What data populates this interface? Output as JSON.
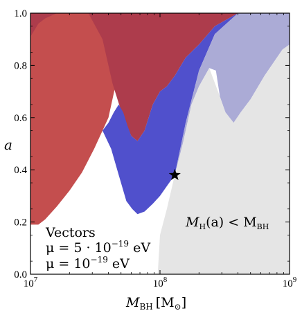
{
  "chart_data": {
    "type": "area",
    "x_scale": "log",
    "xlim": [
      10000000,
      1000000000
    ],
    "ylim": [
      0,
      1
    ],
    "grid": false,
    "legend_position": "bottom-left",
    "x_ticks": [
      {
        "value": 10000000,
        "base": "10",
        "exp": "7"
      },
      {
        "value": 100000000,
        "base": "10",
        "exp": "8"
      },
      {
        "value": 1000000000,
        "base": "10",
        "exp": "9"
      }
    ],
    "y_ticks": [
      {
        "value": 0.0,
        "label": "0.0"
      },
      {
        "value": 0.2,
        "label": "0.2"
      },
      {
        "value": 0.4,
        "label": "0.4"
      },
      {
        "value": 0.6,
        "label": "0.6"
      },
      {
        "value": 0.8,
        "label": "0.8"
      },
      {
        "value": 1.0,
        "label": "1.0"
      }
    ],
    "xlabel": {
      "main": "M",
      "sub": "BH",
      "unit": "[M",
      "unit_sub": "⊙",
      "unit_close": "]"
    },
    "ylabel": "a",
    "legend": {
      "title": "Vectors",
      "entries": [
        {
          "prefix": "μ = 5 · 10",
          "exp": "−19",
          "unit": " eV",
          "color": "#9e3a3a"
        },
        {
          "prefix": "μ = 10",
          "exp": "−19",
          "unit": " eV",
          "color": "#3a3aa8"
        }
      ]
    },
    "annotation": {
      "a": "M",
      "a_sub": "H",
      "mid": "(a) < M",
      "b_sub": "BH"
    },
    "series": [
      {
        "color": "#c44e4e",
        "points": [
          [
            10000000,
            0.19
          ],
          [
            11500000,
            0.19
          ],
          [
            13000000,
            0.21
          ],
          [
            16000000,
            0.26
          ],
          [
            20000000,
            0.32
          ],
          [
            25000000,
            0.39
          ],
          [
            31000000,
            0.48
          ],
          [
            36000000,
            0.55
          ],
          [
            40000000,
            0.6
          ],
          [
            48000000,
            0.78
          ],
          [
            55000000,
            0.98
          ],
          [
            58000000,
            1.0
          ],
          [
            10000000,
            1.0
          ]
        ]
      },
      {
        "color": "#ad3c4c",
        "points": [
          [
            10000000,
            0.91
          ],
          [
            11500000,
            0.96
          ],
          [
            13000000,
            0.98
          ],
          [
            16000000,
            1.0
          ],
          [
            28000000,
            1.0
          ],
          [
            36000000,
            0.9
          ],
          [
            43000000,
            0.73
          ],
          [
            52000000,
            0.6
          ],
          [
            60000000,
            0.53
          ],
          [
            67000000,
            0.51
          ],
          [
            76000000,
            0.55
          ],
          [
            88000000,
            0.65
          ],
          [
            100000000,
            0.7
          ],
          [
            113000000,
            0.72
          ],
          [
            130000000,
            0.76
          ],
          [
            158000000,
            0.83
          ],
          [
            200000000,
            0.88
          ],
          [
            265000000,
            0.95
          ],
          [
            400000000,
            1.0
          ],
          [
            10000000,
            1.0
          ]
        ]
      },
      {
        "color": "#5050cc",
        "points": [
          [
            36000000,
            0.55
          ],
          [
            42000000,
            0.48
          ],
          [
            48000000,
            0.38
          ],
          [
            55000000,
            0.28
          ],
          [
            61000000,
            0.25
          ],
          [
            67000000,
            0.23
          ],
          [
            76000000,
            0.24
          ],
          [
            88000000,
            0.27
          ],
          [
            100000000,
            0.3
          ],
          [
            114000000,
            0.34
          ],
          [
            130000000,
            0.38
          ],
          [
            158000000,
            0.58
          ],
          [
            200000000,
            0.78
          ],
          [
            265000000,
            0.92
          ],
          [
            400000000,
            1.0
          ],
          [
            265000000,
            0.95
          ],
          [
            200000000,
            0.88
          ],
          [
            158000000,
            0.83
          ],
          [
            130000000,
            0.76
          ],
          [
            113000000,
            0.72
          ],
          [
            100000000,
            0.7
          ],
          [
            88000000,
            0.65
          ],
          [
            76000000,
            0.55
          ],
          [
            67000000,
            0.51
          ],
          [
            60000000,
            0.53
          ],
          [
            56000000,
            0.57
          ],
          [
            52000000,
            0.62
          ],
          [
            48000000,
            0.65
          ],
          [
            44000000,
            0.62
          ],
          [
            40000000,
            0.58
          ]
        ]
      },
      {
        "color": "#ababd6",
        "points": [
          [
            130000000,
            0.38
          ],
          [
            150000000,
            0.5
          ],
          [
            175000000,
            0.65
          ],
          [
            200000000,
            0.72
          ],
          [
            240000000,
            0.79
          ],
          [
            270000000,
            0.78
          ],
          [
            290000000,
            0.68
          ],
          [
            320000000,
            0.62
          ],
          [
            370000000,
            0.58
          ],
          [
            420000000,
            0.62
          ],
          [
            500000000,
            0.67
          ],
          [
            640000000,
            0.76
          ],
          [
            880000000,
            0.86
          ],
          [
            1000000000,
            0.88
          ],
          [
            1000000000,
            1.0
          ],
          [
            400000000,
            1.0
          ],
          [
            265000000,
            0.92
          ],
          [
            200000000,
            0.78
          ],
          [
            158000000,
            0.58
          ]
        ]
      },
      {
        "color": "#e5e5e5",
        "points": [
          [
            96000000,
            0.0
          ],
          [
            100000000,
            0.15
          ],
          [
            113000000,
            0.25
          ],
          [
            130000000,
            0.38
          ],
          [
            150000000,
            0.5
          ],
          [
            175000000,
            0.65
          ],
          [
            200000000,
            0.72
          ],
          [
            240000000,
            0.79
          ],
          [
            290000000,
            0.68
          ],
          [
            320000000,
            0.62
          ],
          [
            370000000,
            0.58
          ],
          [
            420000000,
            0.62
          ],
          [
            500000000,
            0.67
          ],
          [
            640000000,
            0.76
          ],
          [
            880000000,
            0.86
          ],
          [
            1000000000,
            0.88
          ],
          [
            1000000000,
            0.0
          ]
        ]
      }
    ],
    "marker": {
      "x": 130000000,
      "y": 0.38,
      "shape": "star",
      "color": "#000000"
    }
  }
}
